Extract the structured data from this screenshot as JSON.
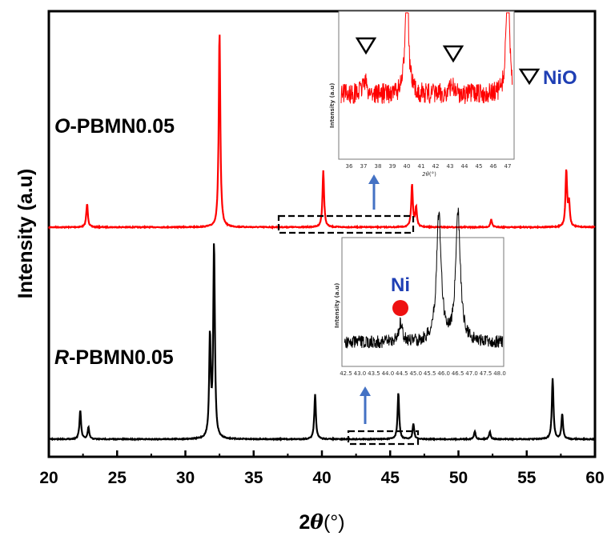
{
  "chart_data": {
    "type": "line",
    "xlabel_prefix": "2",
    "xlabel_theta": "θ",
    "xlabel_unit": "(°)",
    "ylabel": "Intensity (a.u)",
    "xlim": [
      20,
      60
    ],
    "xticks": [
      "20",
      "25",
      "30",
      "35",
      "40",
      "45",
      "50",
      "55",
      "60"
    ],
    "grid": false,
    "series": [
      {
        "label_italic": "O",
        "label_rest": "-PBMN0.05",
        "color": "#ff0000",
        "peaks": [
          {
            "x": 22.8,
            "h": 0.12
          },
          {
            "x": 32.5,
            "h": 1.0
          },
          {
            "x": 40.1,
            "h": 0.29
          },
          {
            "x": 46.6,
            "h": 0.22
          },
          {
            "x": 46.9,
            "h": 0.1
          },
          {
            "x": 52.4,
            "h": 0.04
          },
          {
            "x": 57.9,
            "h": 0.29
          },
          {
            "x": 58.1,
            "h": 0.12
          }
        ]
      },
      {
        "label_italic": "R",
        "label_rest": "-PBMN0.05",
        "color": "#000000",
        "peaks": [
          {
            "x": 22.3,
            "h": 0.15
          },
          {
            "x": 22.9,
            "h": 0.06
          },
          {
            "x": 31.8,
            "h": 0.52
          },
          {
            "x": 32.1,
            "h": 1.0
          },
          {
            "x": 39.5,
            "h": 0.23
          },
          {
            "x": 45.6,
            "h": 0.24
          },
          {
            "x": 46.7,
            "h": 0.08
          },
          {
            "x": 51.2,
            "h": 0.04
          },
          {
            "x": 52.3,
            "h": 0.04
          },
          {
            "x": 56.9,
            "h": 0.31
          },
          {
            "x": 57.6,
            "h": 0.13
          }
        ]
      }
    ],
    "insets": [
      {
        "name": "red-inset",
        "xticks": [
          "36",
          "37",
          "38",
          "39",
          "40",
          "41",
          "42",
          "43",
          "44",
          "45",
          "46",
          "47"
        ],
        "ylabel": "Intensity (a.u)",
        "xlabel_theta": "2θ",
        "xlabel_unit": "(°)",
        "marker_positions": [
          37.1,
          43.2
        ],
        "marker_symbol": "▽"
      },
      {
        "name": "black-inset",
        "xticks": [
          "42.5",
          "43.0",
          "43.5",
          "44.0",
          "44.5",
          "45.0",
          "45.5",
          "46.0",
          "46.5",
          "47.0",
          "47.5",
          "48.0"
        ],
        "ylabel": "Intensity (a.u)",
        "marker_label": "Ni",
        "marker_position": 44.5
      }
    ],
    "legend": {
      "symbol": "▽",
      "label": "NiO"
    }
  }
}
